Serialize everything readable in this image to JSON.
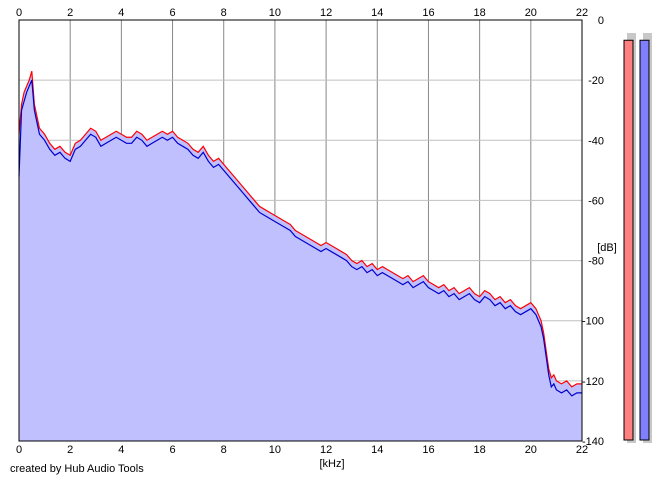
{
  "chart_data": {
    "type": "area",
    "xlabel": "[kHz]",
    "ylabel": "[dB]",
    "xlim": [
      0,
      22
    ],
    "ylim": [
      -140,
      0
    ],
    "x_ticks": [
      0,
      2,
      4,
      6,
      8,
      10,
      12,
      14,
      16,
      18,
      20,
      22
    ],
    "y_ticks": [
      0,
      -20,
      -40,
      -60,
      -80,
      -100,
      -120,
      -140
    ],
    "x_tick_labels": [
      "0",
      "2",
      "4",
      "6",
      "8",
      "10",
      "12",
      "14",
      "16",
      "18",
      "20",
      "22"
    ],
    "y_tick_labels": [
      "0",
      "-20",
      "-40",
      "-60",
      "-80",
      "-100",
      "-120",
      "-140"
    ],
    "grid": true,
    "fill_color": "#c0c0ff",
    "series": [
      {
        "color": "#ff0000",
        "x": [
          0,
          0.1,
          0.2,
          0.3,
          0.4,
          0.5,
          0.6,
          0.8,
          1.0,
          1.2,
          1.4,
          1.6,
          1.8,
          2.0,
          2.2,
          2.4,
          2.6,
          2.8,
          3.0,
          3.2,
          3.4,
          3.6,
          3.8,
          4.0,
          4.2,
          4.4,
          4.6,
          4.8,
          5.0,
          5.2,
          5.4,
          5.6,
          5.8,
          6.0,
          6.2,
          6.4,
          6.6,
          6.8,
          7.0,
          7.2,
          7.4,
          7.6,
          7.8,
          8.0,
          8.2,
          8.4,
          8.6,
          8.8,
          9.0,
          9.2,
          9.4,
          9.6,
          9.8,
          10.0,
          10.2,
          10.4,
          10.6,
          10.8,
          11.0,
          11.2,
          11.4,
          11.6,
          11.8,
          12.0,
          12.2,
          12.4,
          12.6,
          12.8,
          13.0,
          13.2,
          13.4,
          13.6,
          13.8,
          14.0,
          14.2,
          14.4,
          14.6,
          14.8,
          15.0,
          15.2,
          15.4,
          15.6,
          15.8,
          16.0,
          16.2,
          16.4,
          16.6,
          16.8,
          17.0,
          17.2,
          17.4,
          17.6,
          17.8,
          18.0,
          18.2,
          18.4,
          18.6,
          18.8,
          19.0,
          19.2,
          19.4,
          19.6,
          19.8,
          20.0,
          20.1,
          20.2,
          20.3,
          20.4,
          20.5,
          20.6,
          20.7,
          20.8,
          20.9,
          21.0,
          21.2,
          21.4,
          21.6,
          21.8,
          22.0
        ],
        "values": [
          -38,
          -28,
          -24,
          -22,
          -20,
          -17,
          -28,
          -36,
          -38,
          -41,
          -43,
          -42,
          -44,
          -45,
          -41,
          -40,
          -38,
          -36,
          -37,
          -40,
          -39,
          -38,
          -37,
          -38,
          -39,
          -39,
          -37,
          -38,
          -40,
          -39,
          -38,
          -37,
          -38,
          -37,
          -39,
          -40,
          -41,
          -43,
          -44,
          -42,
          -45,
          -47,
          -46,
          -48,
          -50,
          -52,
          -54,
          -56,
          -58,
          -60,
          -62,
          -63,
          -64,
          -65,
          -66,
          -67,
          -68,
          -70,
          -71,
          -72,
          -73,
          -74,
          -75,
          -74,
          -75,
          -76,
          -77,
          -78,
          -80,
          -81,
          -80,
          -82,
          -81,
          -83,
          -82,
          -83,
          -84,
          -85,
          -86,
          -85,
          -87,
          -86,
          -85,
          -87,
          -88,
          -89,
          -88,
          -90,
          -89,
          -91,
          -90,
          -89,
          -91,
          -92,
          -90,
          -91,
          -93,
          -92,
          -94,
          -93,
          -95,
          -96,
          -95,
          -94,
          -95,
          -96,
          -98,
          -100,
          -104,
          -110,
          -116,
          -119,
          -118,
          -120,
          -121,
          -120,
          -122,
          -121,
          -121
        ]
      },
      {
        "color": "#0000cc",
        "x": [
          0,
          0.1,
          0.2,
          0.3,
          0.4,
          0.5,
          0.6,
          0.8,
          1.0,
          1.2,
          1.4,
          1.6,
          1.8,
          2.0,
          2.2,
          2.4,
          2.6,
          2.8,
          3.0,
          3.2,
          3.4,
          3.6,
          3.8,
          4.0,
          4.2,
          4.4,
          4.6,
          4.8,
          5.0,
          5.2,
          5.4,
          5.6,
          5.8,
          6.0,
          6.2,
          6.4,
          6.6,
          6.8,
          7.0,
          7.2,
          7.4,
          7.6,
          7.8,
          8.0,
          8.2,
          8.4,
          8.6,
          8.8,
          9.0,
          9.2,
          9.4,
          9.6,
          9.8,
          10.0,
          10.2,
          10.4,
          10.6,
          10.8,
          11.0,
          11.2,
          11.4,
          11.6,
          11.8,
          12.0,
          12.2,
          12.4,
          12.6,
          12.8,
          13.0,
          13.2,
          13.4,
          13.6,
          13.8,
          14.0,
          14.2,
          14.4,
          14.6,
          14.8,
          15.0,
          15.2,
          15.4,
          15.6,
          15.8,
          16.0,
          16.2,
          16.4,
          16.6,
          16.8,
          17.0,
          17.2,
          17.4,
          17.6,
          17.8,
          18.0,
          18.2,
          18.4,
          18.6,
          18.8,
          19.0,
          19.2,
          19.4,
          19.6,
          19.8,
          20.0,
          20.1,
          20.2,
          20.3,
          20.4,
          20.5,
          20.6,
          20.7,
          20.8,
          20.9,
          21.0,
          21.2,
          21.4,
          21.6,
          21.8,
          22.0
        ],
        "values": [
          -52,
          -30,
          -27,
          -24,
          -22,
          -20,
          -30,
          -38,
          -40,
          -43,
          -45,
          -44,
          -46,
          -47,
          -43,
          -42,
          -40,
          -38,
          -39,
          -42,
          -41,
          -40,
          -39,
          -40,
          -41,
          -41,
          -39,
          -40,
          -42,
          -41,
          -40,
          -39,
          -40,
          -39,
          -41,
          -42,
          -43,
          -45,
          -46,
          -44,
          -47,
          -49,
          -48,
          -50,
          -52,
          -54,
          -56,
          -58,
          -60,
          -62,
          -64,
          -65,
          -66,
          -67,
          -68,
          -69,
          -70,
          -72,
          -73,
          -74,
          -75,
          -76,
          -77,
          -76,
          -77,
          -78,
          -79,
          -80,
          -82,
          -83,
          -82,
          -84,
          -83,
          -85,
          -84,
          -85,
          -86,
          -87,
          -88,
          -87,
          -89,
          -88,
          -87,
          -89,
          -90,
          -91,
          -90,
          -92,
          -91,
          -93,
          -92,
          -91,
          -93,
          -94,
          -92,
          -93,
          -95,
          -94,
          -96,
          -95,
          -97,
          -98,
          -97,
          -96,
          -97,
          -98,
          -100,
          -102,
          -106,
          -112,
          -118,
          -122,
          -121,
          -123,
          -124,
          -123,
          -125,
          -124,
          -124
        ]
      }
    ],
    "level_meters": [
      {
        "color": "#ff8080",
        "level": 0.975
      },
      {
        "color": "#8080ff",
        "level": 0.975
      }
    ]
  },
  "footer": {
    "credit": "created by Hub Audio Tools"
  }
}
